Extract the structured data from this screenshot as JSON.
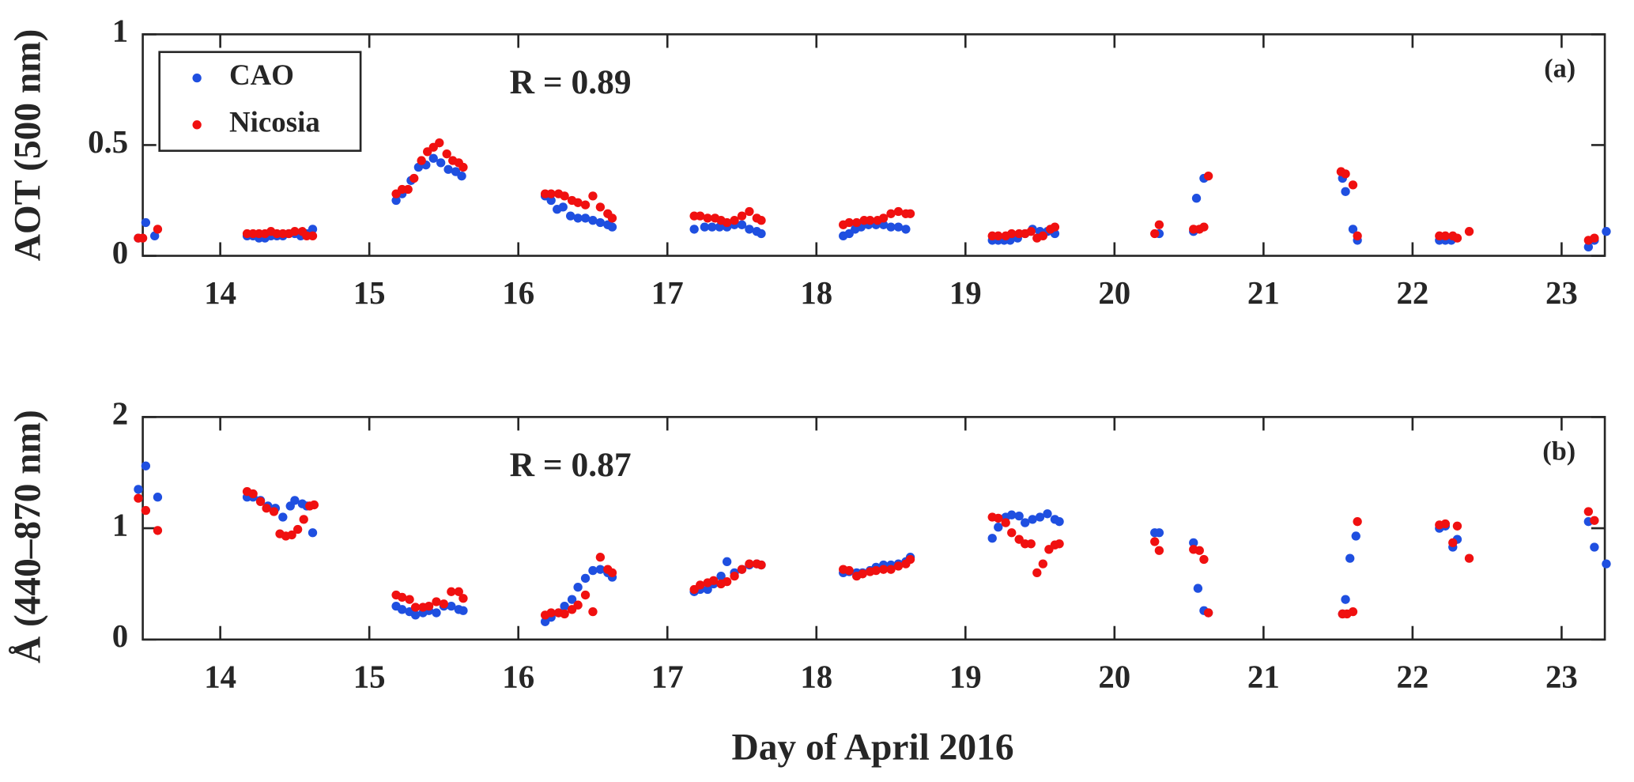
{
  "chart_data": [
    {
      "type": "scatter",
      "y_label": "AOT (500 nm)",
      "r_label": "R = 0.89",
      "panel_label": "(a)",
      "legend": "upper left",
      "xlim": [
        13.48,
        23.29
      ],
      "xticks": [
        14,
        15,
        16,
        17,
        18,
        19,
        20,
        21,
        22,
        23
      ],
      "ylim": [
        0,
        1
      ],
      "yticks": [
        0,
        0.5,
        1
      ],
      "series": [
        {
          "name": "CAO",
          "color": "#1f4fe0",
          "x": [
            13.45,
            13.5,
            13.56,
            14.18,
            14.22,
            14.26,
            14.3,
            14.34,
            14.38,
            14.42,
            14.46,
            14.5,
            14.54,
            14.58,
            14.62,
            15.18,
            15.22,
            15.28,
            15.33,
            15.38,
            15.43,
            15.48,
            15.53,
            15.58,
            15.62,
            16.18,
            16.22,
            16.26,
            16.3,
            16.35,
            16.4,
            16.45,
            16.5,
            16.55,
            16.6,
            16.63,
            17.18,
            17.25,
            17.3,
            17.35,
            17.4,
            17.45,
            17.5,
            17.55,
            17.6,
            17.63,
            18.18,
            18.22,
            18.26,
            18.3,
            18.35,
            18.4,
            18.45,
            18.5,
            18.55,
            18.6,
            19.18,
            19.22,
            19.26,
            19.3,
            19.35,
            19.4,
            19.45,
            19.5,
            19.55,
            19.6,
            20.3,
            20.53,
            20.55,
            20.6,
            21.53,
            21.55,
            21.6,
            21.63,
            22.18,
            22.22,
            22.26,
            23.18,
            23.22,
            23.3
          ],
          "values": [
            0.08,
            0.15,
            0.09,
            0.09,
            0.09,
            0.08,
            0.08,
            0.09,
            0.09,
            0.09,
            0.1,
            0.1,
            0.09,
            0.1,
            0.12,
            0.25,
            0.28,
            0.34,
            0.4,
            0.41,
            0.44,
            0.42,
            0.39,
            0.38,
            0.36,
            0.27,
            0.25,
            0.21,
            0.22,
            0.18,
            0.17,
            0.17,
            0.16,
            0.15,
            0.14,
            0.13,
            0.12,
            0.13,
            0.13,
            0.13,
            0.13,
            0.14,
            0.14,
            0.12,
            0.11,
            0.1,
            0.09,
            0.1,
            0.12,
            0.13,
            0.14,
            0.14,
            0.14,
            0.13,
            0.13,
            0.12,
            0.07,
            0.07,
            0.07,
            0.07,
            0.08,
            0.1,
            0.12,
            0.11,
            0.11,
            0.1,
            0.1,
            0.11,
            0.26,
            0.35,
            0.35,
            0.29,
            0.12,
            0.07,
            0.07,
            0.07,
            0.07,
            0.04,
            0.07,
            0.11
          ]
        },
        {
          "name": "Nicosia",
          "color": "#f01010",
          "x": [
            13.45,
            13.48,
            13.58,
            14.18,
            14.22,
            14.26,
            14.3,
            14.34,
            14.38,
            14.42,
            14.46,
            14.5,
            14.55,
            14.58,
            14.62,
            15.18,
            15.22,
            15.26,
            15.3,
            15.35,
            15.39,
            15.43,
            15.47,
            15.52,
            15.56,
            15.6,
            15.63,
            16.18,
            16.22,
            16.27,
            16.31,
            16.36,
            16.4,
            16.45,
            16.5,
            16.55,
            16.6,
            16.63,
            17.18,
            17.22,
            17.27,
            17.32,
            17.36,
            17.4,
            17.45,
            17.5,
            17.55,
            17.6,
            17.63,
            18.18,
            18.22,
            18.27,
            18.32,
            18.36,
            18.41,
            18.45,
            18.5,
            18.55,
            18.6,
            18.63,
            19.18,
            19.22,
            19.27,
            19.31,
            19.36,
            19.4,
            19.44,
            19.48,
            19.52,
            19.57,
            19.6,
            20.27,
            20.3,
            20.53,
            20.57,
            20.6,
            20.63,
            21.52,
            21.55,
            21.6,
            21.63,
            22.18,
            22.22,
            22.27,
            22.3,
            22.38,
            23.18,
            23.22
          ],
          "values": [
            0.08,
            0.08,
            0.12,
            0.1,
            0.1,
            0.1,
            0.1,
            0.11,
            0.1,
            0.1,
            0.1,
            0.11,
            0.11,
            0.09,
            0.09,
            0.28,
            0.3,
            0.3,
            0.35,
            0.43,
            0.47,
            0.49,
            0.51,
            0.46,
            0.43,
            0.42,
            0.4,
            0.28,
            0.28,
            0.28,
            0.27,
            0.25,
            0.24,
            0.23,
            0.27,
            0.22,
            0.19,
            0.17,
            0.18,
            0.18,
            0.17,
            0.17,
            0.16,
            0.15,
            0.16,
            0.18,
            0.2,
            0.17,
            0.16,
            0.14,
            0.15,
            0.15,
            0.16,
            0.16,
            0.16,
            0.17,
            0.19,
            0.2,
            0.19,
            0.19,
            0.09,
            0.09,
            0.09,
            0.1,
            0.1,
            0.1,
            0.11,
            0.08,
            0.09,
            0.12,
            0.13,
            0.1,
            0.14,
            0.12,
            0.12,
            0.13,
            0.36,
            0.38,
            0.37,
            0.32,
            0.09,
            0.09,
            0.09,
            0.09,
            0.08,
            0.11,
            0.07,
            0.08
          ]
        }
      ]
    },
    {
      "type": "scatter",
      "y_label": "Å (440–870 nm)",
      "x_label": "Day of April 2016",
      "r_label": "R = 0.87",
      "panel_label": "(b)",
      "xlim": [
        13.48,
        23.29
      ],
      "xticks": [
        14,
        15,
        16,
        17,
        18,
        19,
        20,
        21,
        22,
        23
      ],
      "ylim": [
        0,
        2
      ],
      "yticks": [
        0,
        1,
        2
      ],
      "series": [
        {
          "color": "#1f4fe0",
          "x": [
            13.45,
            13.5,
            13.58,
            14.18,
            14.22,
            14.27,
            14.32,
            14.37,
            14.42,
            14.47,
            14.5,
            14.55,
            14.58,
            14.62,
            15.18,
            15.22,
            15.27,
            15.31,
            15.36,
            15.4,
            15.45,
            15.5,
            15.55,
            15.6,
            15.63,
            16.18,
            16.22,
            16.27,
            16.31,
            16.36,
            16.4,
            16.45,
            16.5,
            16.55,
            16.6,
            16.63,
            17.18,
            17.22,
            17.27,
            17.31,
            17.36,
            17.4,
            17.45,
            17.5,
            17.55,
            17.6,
            17.63,
            18.18,
            18.22,
            18.27,
            18.31,
            18.36,
            18.4,
            18.45,
            18.5,
            18.55,
            18.6,
            18.63,
            19.18,
            19.22,
            19.27,
            19.31,
            19.36,
            19.4,
            19.45,
            19.5,
            19.55,
            19.6,
            19.63,
            20.27,
            20.3,
            20.53,
            20.56,
            20.6,
            20.63,
            21.53,
            21.55,
            21.58,
            21.62,
            22.18,
            22.22,
            22.27,
            22.3,
            23.18,
            23.22,
            23.3
          ],
          "values": [
            1.35,
            1.56,
            1.28,
            1.28,
            1.28,
            1.25,
            1.2,
            1.18,
            1.1,
            1.2,
            1.25,
            1.22,
            1.2,
            0.96,
            0.3,
            0.27,
            0.25,
            0.22,
            0.24,
            0.26,
            0.24,
            0.3,
            0.3,
            0.27,
            0.26,
            0.16,
            0.2,
            0.24,
            0.3,
            0.36,
            0.47,
            0.55,
            0.62,
            0.63,
            0.6,
            0.56,
            0.43,
            0.45,
            0.45,
            0.5,
            0.57,
            0.7,
            0.6,
            0.63,
            0.67,
            0.68,
            0.67,
            0.6,
            0.61,
            0.6,
            0.6,
            0.62,
            0.65,
            0.67,
            0.67,
            0.68,
            0.7,
            0.74,
            0.91,
            1.01,
            1.1,
            1.12,
            1.11,
            1.05,
            1.08,
            1.1,
            1.13,
            1.08,
            1.06,
            0.96,
            0.96,
            0.87,
            0.46,
            0.26,
            0.24,
            0.23,
            0.36,
            0.73,
            0.93,
            1.0,
            1.02,
            0.83,
            0.9,
            1.06,
            0.83,
            0.68
          ]
        },
        {
          "color": "#f01010",
          "x": [
            13.45,
            13.5,
            13.58,
            14.18,
            14.22,
            14.27,
            14.31,
            14.36,
            14.4,
            14.44,
            14.48,
            14.52,
            14.56,
            14.6,
            14.63,
            15.18,
            15.22,
            15.27,
            15.31,
            15.36,
            15.4,
            15.45,
            15.5,
            15.55,
            15.6,
            15.63,
            16.18,
            16.22,
            16.27,
            16.31,
            16.36,
            16.4,
            16.45,
            16.5,
            16.55,
            16.6,
            16.63,
            17.18,
            17.22,
            17.27,
            17.31,
            17.36,
            17.4,
            17.45,
            17.5,
            17.55,
            17.6,
            17.63,
            18.18,
            18.22,
            18.27,
            18.31,
            18.36,
            18.4,
            18.45,
            18.5,
            18.55,
            18.6,
            18.63,
            19.18,
            19.22,
            19.27,
            19.31,
            19.36,
            19.4,
            19.44,
            19.48,
            19.52,
            19.56,
            19.6,
            19.63,
            20.27,
            20.3,
            20.53,
            20.57,
            20.6,
            20.63,
            21.53,
            21.56,
            21.6,
            21.63,
            22.18,
            22.22,
            22.27,
            22.3,
            22.38,
            23.18,
            23.22
          ],
          "values": [
            1.27,
            1.16,
            0.98,
            1.33,
            1.31,
            1.24,
            1.18,
            1.15,
            0.95,
            0.93,
            0.94,
            0.99,
            1.08,
            1.2,
            1.21,
            0.4,
            0.38,
            0.36,
            0.29,
            0.29,
            0.3,
            0.34,
            0.32,
            0.43,
            0.43,
            0.37,
            0.22,
            0.24,
            0.24,
            0.23,
            0.27,
            0.31,
            0.4,
            0.25,
            0.74,
            0.63,
            0.6,
            0.45,
            0.49,
            0.51,
            0.53,
            0.5,
            0.52,
            0.57,
            0.63,
            0.68,
            0.68,
            0.67,
            0.63,
            0.62,
            0.57,
            0.59,
            0.61,
            0.62,
            0.63,
            0.63,
            0.66,
            0.68,
            0.72,
            1.1,
            1.09,
            1.05,
            0.96,
            0.9,
            0.86,
            0.86,
            0.6,
            0.68,
            0.81,
            0.85,
            0.86,
            0.88,
            0.8,
            0.81,
            0.8,
            0.72,
            0.24,
            0.23,
            0.23,
            0.25,
            1.06,
            1.03,
            1.04,
            0.87,
            1.02,
            0.73,
            1.15,
            1.07
          ]
        }
      ]
    }
  ]
}
